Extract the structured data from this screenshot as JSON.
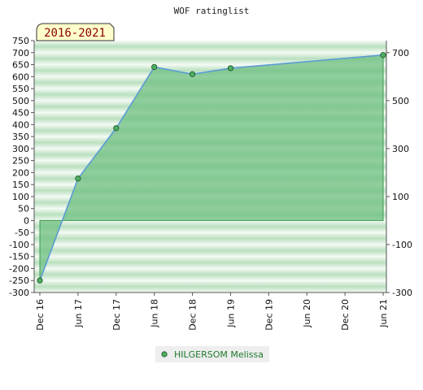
{
  "chart_data": {
    "type": "area",
    "title": "WOF ratinglist",
    "period_label": "2016-2021",
    "x_categories": [
      "Dec 16",
      "Jun 17",
      "Dec 17",
      "Jun 18",
      "Dec 18",
      "Jun 19",
      "Dec 19",
      "Jun 20",
      "Dec 20",
      "Jun 21"
    ],
    "left_axis": {
      "ylim": [
        -300,
        750
      ],
      "ticks": [
        750,
        700,
        650,
        600,
        550,
        500,
        450,
        400,
        350,
        300,
        250,
        200,
        150,
        100,
        50,
        0,
        -50,
        -100,
        -150,
        -200,
        -250,
        -300
      ]
    },
    "right_axis": {
      "ylim": [
        -300,
        750
      ],
      "ticks": [
        700,
        500,
        300,
        100,
        -100,
        -300
      ]
    },
    "series": [
      {
        "name": "HILGERSOM Melissa",
        "points": [
          {
            "x": "Dec 16",
            "y": -250
          },
          {
            "x": "Jun 17",
            "y": 175
          },
          {
            "x": "Dec 17",
            "y": 385
          },
          {
            "x": "Jun 18",
            "y": 640
          },
          {
            "x": "Dec 18",
            "y": 610
          },
          {
            "x": "Jun 19",
            "y": 635
          },
          {
            "x": "Jun 21",
            "y": 690
          }
        ]
      }
    ],
    "grid": false,
    "legend_position": "bottom-center",
    "colors": {
      "line": "#5b9bd5",
      "area_fill": "#6fbf82",
      "marker": "#4caf62",
      "legend_text": "#1f7a2e",
      "period_box": "#ffffcc",
      "period_text": "#8b0000"
    }
  }
}
